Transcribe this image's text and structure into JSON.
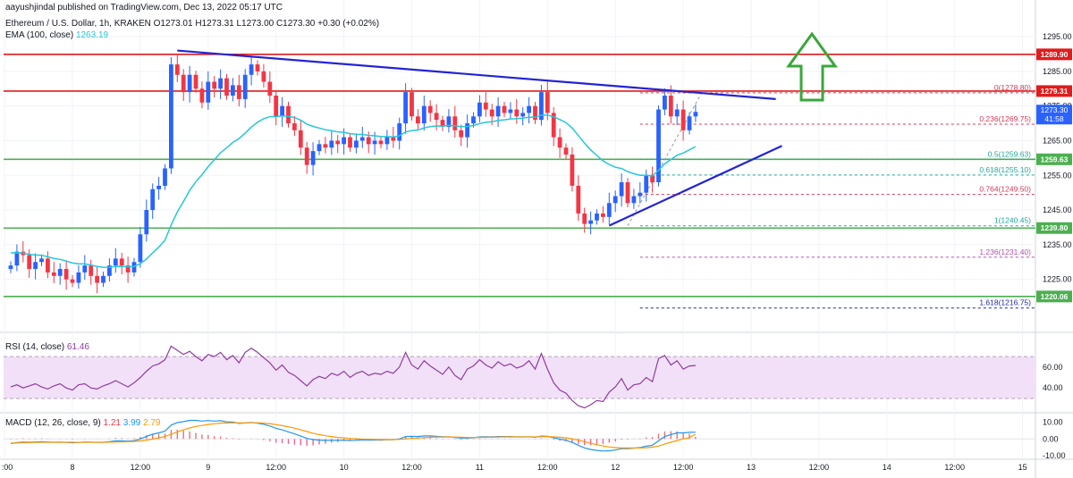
{
  "header": {
    "published": "aayushjindal published on TradingView.com, Dec 13, 2022 05:17 UTC",
    "symbol": "Ethereum / U.S. Dollar, 1h, KRAKEN",
    "ohlc": "O1273.01 H1273.31 L1273.00 C1273.30 +0.30 (+0.02%)",
    "ema_label": "EMA (100, close)",
    "ema_value": "1263.19"
  },
  "colors": {
    "up": "#2962ff",
    "down": "#f23645",
    "ema": "#26c6da",
    "trend": "#2424d4",
    "red_level": "#e01c1c",
    "green_level": "#4caf50",
    "fib_red": "#d13b55",
    "fib_green": "#26a69a",
    "fib_blue": "#1e2a9c",
    "fib_purple": "#b24fae",
    "arrow": "#39a73a",
    "rsi": "#8e3c9e",
    "rsi_band": "#f1e0f7",
    "macd": "#2196f3",
    "signal": "#ff9800"
  },
  "chart_data": {
    "type": "candlestick",
    "title": "Ethereum / U.S. Dollar, 1h, KRAKEN",
    "price_axis": {
      "range": [
        1211,
        1303
      ],
      "ticks": [
        "1295.00",
        "1285.00",
        "1275.00",
        "1265.00",
        "1255.00",
        "1245.00",
        "1235.00",
        "1225.00"
      ],
      "tick_values": [
        1295,
        1285,
        1275,
        1265,
        1255,
        1245,
        1235,
        1225
      ]
    },
    "time_axis": {
      "bars": 116,
      "ticks": [
        {
          "label": ":00",
          "bar": -1
        },
        {
          "label": "8",
          "bar": 10
        },
        {
          "label": "12:00",
          "bar": 21
        },
        {
          "label": "9",
          "bar": 32
        },
        {
          "label": "12:00",
          "bar": 43
        },
        {
          "label": "10",
          "bar": 54
        },
        {
          "label": "12:00",
          "bar": 65
        },
        {
          "label": "11",
          "bar": 76
        },
        {
          "label": "12:00",
          "bar": 87
        },
        {
          "label": "12",
          "bar": 98
        },
        {
          "label": "12:00",
          "bar": 109
        },
        {
          "label": "13",
          "bar": 120
        },
        {
          "label": "12:00",
          "bar": 131
        },
        {
          "label": "14",
          "bar": 142
        },
        {
          "label": "12:00",
          "bar": 153
        },
        {
          "label": "15",
          "bar": 164
        }
      ]
    },
    "candles_close": [
      1229,
      1233,
      1232,
      1228,
      1230,
      1231,
      1227,
      1226,
      1228,
      1225,
      1224,
      1227,
      1229,
      1226,
      1224,
      1226,
      1229,
      1231,
      1229,
      1227,
      1230,
      1238,
      1245,
      1251,
      1252,
      1257,
      1287,
      1284,
      1279,
      1284,
      1280,
      1276,
      1282,
      1280,
      1283,
      1278,
      1281,
      1277,
      1284,
      1287,
      1285,
      1282,
      1278,
      1272,
      1275,
      1270,
      1268,
      1263,
      1258,
      1262,
      1264,
      1263,
      1265,
      1264,
      1266,
      1263,
      1265,
      1266,
      1264,
      1265,
      1264,
      1266,
      1265,
      1270,
      1279,
      1272,
      1270,
      1275,
      1273,
      1271,
      1269,
      1272,
      1268,
      1266,
      1270,
      1272,
      1276,
      1274,
      1272,
      1275,
      1273,
      1274,
      1272,
      1273,
      1275,
      1271,
      1279,
      1273,
      1266,
      1263,
      1261,
      1252,
      1244,
      1241,
      1242,
      1244,
      1243,
      1247,
      1249,
      1253,
      1247,
      1249,
      1250,
      1255,
      1253,
      1274,
      1278,
      1272,
      1274,
      1268,
      1272,
      1273.3
    ],
    "levels": [
      {
        "name": "resistance-1289-90",
        "value": 1289.9,
        "label": "1289.90",
        "color": "red"
      },
      {
        "name": "resistance-1279-31",
        "value": 1279.31,
        "label": "1279.31",
        "color": "red"
      },
      {
        "name": "support-1259-63",
        "value": 1259.63,
        "label": "1259.63",
        "color": "green"
      },
      {
        "name": "support-1239-80",
        "value": 1239.8,
        "label": "1239.80",
        "color": "green"
      },
      {
        "name": "support-1220-06",
        "value": 1220.06,
        "label": "1220.06",
        "color": "green"
      }
    ],
    "current_price": {
      "label": "1273.30",
      "countdown": "41:58",
      "value": 1273.3
    },
    "fibonacci": [
      {
        "ratio": "0",
        "value": 1278.8,
        "label": "0(1278.80)",
        "tone": "fib_red"
      },
      {
        "ratio": "0.236",
        "value": 1269.75,
        "label": "0.236(1269.75)",
        "tone": "fib_red"
      },
      {
        "ratio": "0.5",
        "value": 1259.63,
        "label": "0.5(1259.63)",
        "tone": "fib_green"
      },
      {
        "ratio": "0.618",
        "value": 1255.1,
        "label": "0.618(1255.10)",
        "tone": "fib_green"
      },
      {
        "ratio": "0.764",
        "value": 1249.5,
        "label": "0.764(1249.50)",
        "tone": "fib_red"
      },
      {
        "ratio": "1",
        "value": 1240.45,
        "label": "1(1240.45)",
        "tone": "fib_green"
      },
      {
        "ratio": "1.236",
        "value": 1231.4,
        "label": "1.236(1231.40)",
        "tone": "fib_purple"
      },
      {
        "ratio": "1.618",
        "value": 1216.75,
        "label": "1.618(1216.75)",
        "tone": "fib_blue"
      }
    ],
    "trendlines": [
      {
        "name": "bearish-trend-line",
        "from": {
          "bar": 27,
          "price": 1291
        },
        "to": {
          "bar": 124,
          "price": 1277
        }
      },
      {
        "name": "bullish-trend-line",
        "from": {
          "bar": 97,
          "price": 1240.5
        },
        "to": {
          "bar": 125,
          "price": 1263.5
        }
      }
    ],
    "rsi": {
      "label": "RSI (14, close)",
      "value": "61.46",
      "ticks": [
        "60.00",
        "40.00"
      ],
      "tick_values": [
        60,
        40
      ],
      "band": [
        30,
        70
      ],
      "range": [
        18,
        88
      ],
      "values": [
        41,
        43,
        40,
        42,
        44,
        41,
        39,
        42,
        44,
        40,
        38,
        43,
        44,
        40,
        39,
        42,
        44,
        47,
        44,
        41,
        45,
        50,
        56,
        61,
        63,
        67,
        80,
        76,
        72,
        75,
        70,
        66,
        72,
        70,
        74,
        67,
        71,
        64,
        74,
        78,
        74,
        69,
        64,
        57,
        62,
        55,
        52,
        47,
        42,
        48,
        51,
        49,
        54,
        52,
        56,
        50,
        54,
        56,
        52,
        54,
        53,
        56,
        54,
        60,
        74,
        62,
        58,
        66,
        61,
        57,
        53,
        60,
        52,
        48,
        58,
        61,
        67,
        62,
        59,
        65,
        61,
        63,
        59,
        61,
        66,
        58,
        73,
        58,
        45,
        38,
        35,
        28,
        23,
        21,
        24,
        28,
        27,
        36,
        41,
        49,
        38,
        43,
        44,
        50,
        46,
        68,
        71,
        62,
        66,
        58,
        61,
        61.46
      ]
    },
    "macd": {
      "label": "MACD (12, 26, close, 9)",
      "values_text": [
        "1.21",
        "3.99",
        "2.79"
      ],
      "ticks": [
        "10.00",
        "0.00",
        "-10.00"
      ],
      "tick_values": [
        10,
        0,
        -10
      ],
      "range": [
        -11,
        15
      ],
      "macd": [
        -2.8,
        -2.2,
        -1.9,
        -2.0,
        -1.8,
        -1.6,
        -1.8,
        -2.0,
        -1.9,
        -2.1,
        -2.3,
        -2.1,
        -1.8,
        -1.9,
        -2.1,
        -2.0,
        -1.6,
        -1.2,
        -1.2,
        -1.3,
        -1.0,
        0.0,
        1.5,
        2.8,
        3.6,
        4.6,
        8.2,
        9.7,
        10.3,
        11.0,
        11.0,
        10.6,
        10.9,
        10.6,
        10.8,
        10.1,
        10.0,
        9.2,
        9.5,
        9.8,
        9.4,
        8.7,
        7.7,
        6.3,
        5.4,
        4.2,
        3.0,
        1.7,
        0.3,
        -0.4,
        -0.7,
        -0.9,
        -0.8,
        -0.9,
        -0.7,
        -0.9,
        -0.8,
        -0.6,
        -0.7,
        -0.6,
        -0.7,
        -0.5,
        -0.5,
        0.0,
        1.4,
        1.5,
        1.4,
        1.8,
        1.8,
        1.6,
        1.3,
        1.3,
        0.9,
        0.5,
        0.5,
        0.7,
        1.2,
        1.3,
        1.2,
        1.4,
        1.4,
        1.4,
        1.2,
        1.2,
        1.3,
        1.0,
        1.7,
        1.5,
        0.7,
        -0.1,
        -0.8,
        -2.1,
        -3.8,
        -5.3,
        -6.3,
        -6.8,
        -7.2,
        -7.0,
        -6.6,
        -5.8,
        -5.8,
        -5.5,
        -5.1,
        -4.3,
        -3.8,
        -1.1,
        1.4,
        2.6,
        3.6,
        3.6,
        3.9,
        3.99
      ],
      "signal": [
        -2.5,
        -2.4,
        -2.3,
        -2.2,
        -2.1,
        -2.0,
        -2.0,
        -2.0,
        -2.0,
        -2.0,
        -2.0,
        -2.1,
        -2.0,
        -2.0,
        -2.0,
        -2.0,
        -1.9,
        -1.8,
        -1.7,
        -1.6,
        -1.5,
        -1.2,
        -0.7,
        -0.1,
        0.6,
        1.4,
        2.8,
        4.2,
        5.4,
        6.5,
        7.4,
        8.0,
        8.6,
        9.0,
        9.4,
        9.5,
        9.6,
        9.5,
        9.5,
        9.6,
        9.6,
        9.4,
        9.1,
        8.5,
        7.9,
        7.2,
        6.4,
        5.4,
        4.4,
        3.4,
        2.6,
        1.9,
        1.4,
        0.9,
        0.6,
        0.3,
        0.1,
        -0.1,
        -0.2,
        -0.3,
        -0.4,
        -0.4,
        -0.4,
        -0.3,
        0.0,
        0.3,
        0.5,
        0.8,
        1.0,
        1.1,
        1.1,
        1.2,
        1.1,
        1.0,
        0.9,
        0.9,
        0.9,
        1.0,
        1.0,
        1.1,
        1.2,
        1.2,
        1.2,
        1.2,
        1.2,
        1.2,
        1.3,
        1.4,
        1.2,
        1.0,
        0.6,
        0.1,
        -0.7,
        -1.6,
        -2.6,
        -3.4,
        -4.2,
        -4.8,
        -5.1,
        -5.3,
        -5.4,
        -5.4,
        -5.4,
        -5.2,
        -4.9,
        -4.2,
        -3.1,
        -2.0,
        -0.9,
        0.0,
        0.8,
        2.79
      ]
    },
    "annotations": [
      "up-arrow"
    ]
  }
}
